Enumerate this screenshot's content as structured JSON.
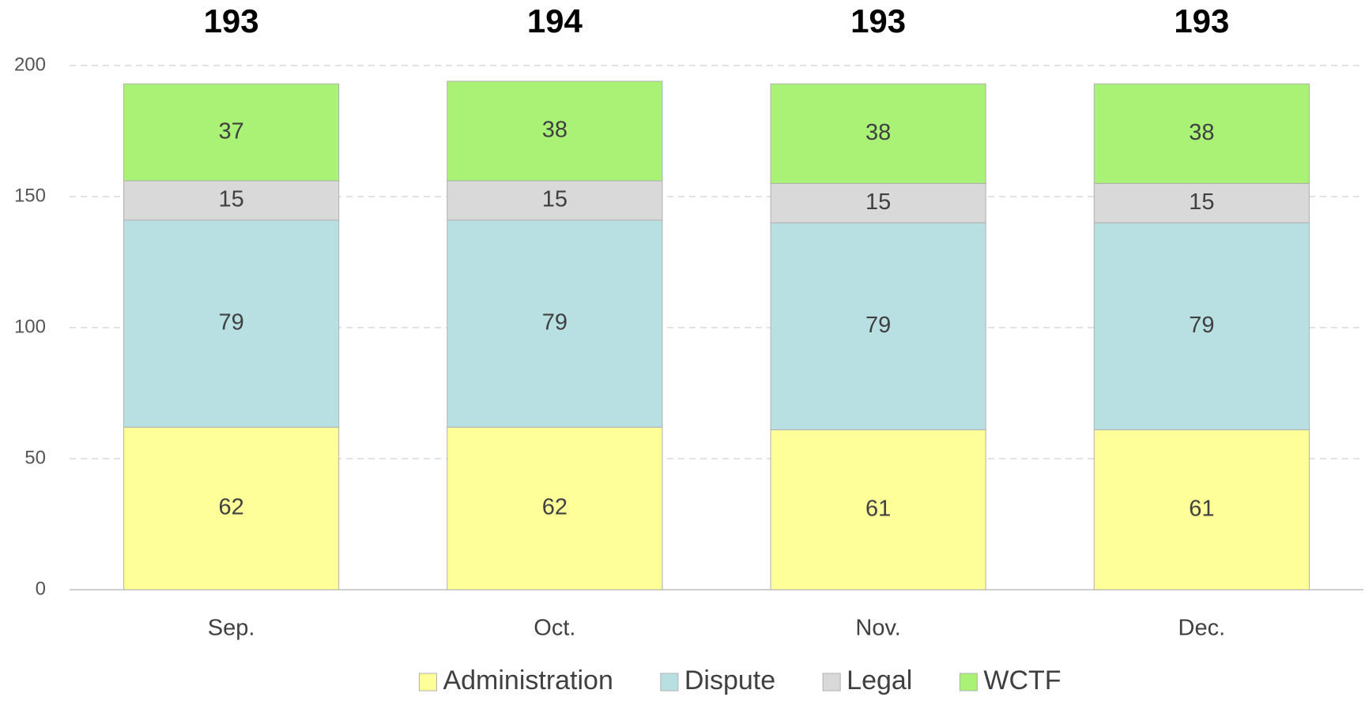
{
  "chart_data": {
    "type": "stacked_bar",
    "categories": [
      "Sep.",
      "Oct.",
      "Nov.",
      "Dec."
    ],
    "series": [
      {
        "name": "Administration",
        "color": "#ffff99",
        "values": [
          62,
          62,
          61,
          61
        ]
      },
      {
        "name": "Dispute",
        "color": "#b8e0e3",
        "values": [
          79,
          79,
          79,
          79
        ]
      },
      {
        "name": "Legal",
        "color": "#d9d9d9",
        "values": [
          15,
          15,
          15,
          15
        ]
      },
      {
        "name": "WCTF",
        "color": "#a9f275",
        "values": [
          37,
          38,
          38,
          38
        ]
      }
    ],
    "totals": [
      193,
      194,
      193,
      193
    ],
    "ylim": [
      0,
      200
    ],
    "yticks": [
      0,
      50,
      100,
      150,
      200
    ],
    "grid": true,
    "legend": "bottom"
  }
}
